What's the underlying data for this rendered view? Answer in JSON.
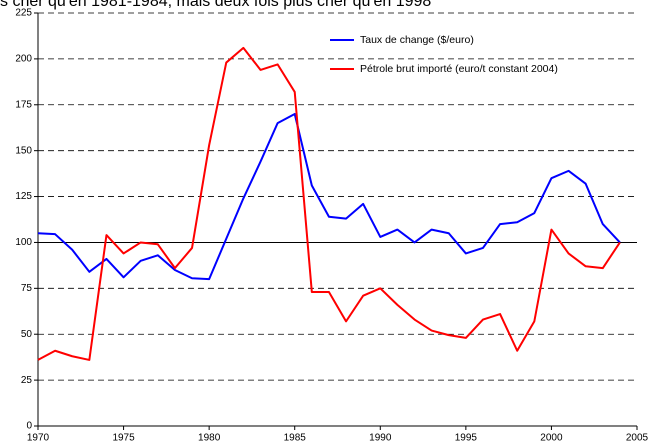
{
  "chart_data": {
    "type": "line",
    "title": "s cher qu'en 1981-1984, mais deux fois plus cher qu'en 1998",
    "x": [
      1970,
      1971,
      1972,
      1973,
      1974,
      1975,
      1976,
      1977,
      1978,
      1979,
      1980,
      1981,
      1982,
      1983,
      1984,
      1985,
      1986,
      1987,
      1988,
      1989,
      1990,
      1991,
      1992,
      1993,
      1994,
      1995,
      1996,
      1997,
      1998,
      1999,
      2000,
      2001,
      2002,
      2003,
      2004
    ],
    "series": [
      {
        "name": "Taux de change ($/euro)",
        "color": "#0000ff",
        "values": [
          105,
          104.5,
          96,
          84,
          91,
          81,
          90,
          93,
          85,
          80.5,
          80,
          102,
          124,
          144,
          165,
          170,
          131,
          114,
          113,
          121,
          103,
          107,
          100,
          107,
          105,
          94,
          97,
          110,
          111,
          116,
          135,
          139,
          132,
          110,
          100
        ]
      },
      {
        "name": "Pétrole brut importé (euro/t constant 2004)",
        "color": "#ff0000",
        "values": [
          36,
          41,
          38,
          36,
          104,
          94,
          100,
          99,
          86,
          97,
          153,
          198,
          206,
          194,
          197,
          182,
          73,
          73,
          57,
          71,
          75,
          66,
          58,
          52,
          49.5,
          48,
          58,
          61,
          41,
          57,
          107,
          94,
          87,
          86,
          100
        ]
      }
    ],
    "xlim": [
      1970,
      2005
    ],
    "xticks": [
      1970,
      1975,
      1980,
      1985,
      1990,
      1995,
      2000,
      2005
    ],
    "ylim": [
      0,
      225
    ],
    "yticks": [
      0,
      25,
      50,
      75,
      100,
      125,
      150,
      175,
      200,
      225
    ],
    "grid": true,
    "reference_line": 100,
    "legend": "upper right"
  }
}
